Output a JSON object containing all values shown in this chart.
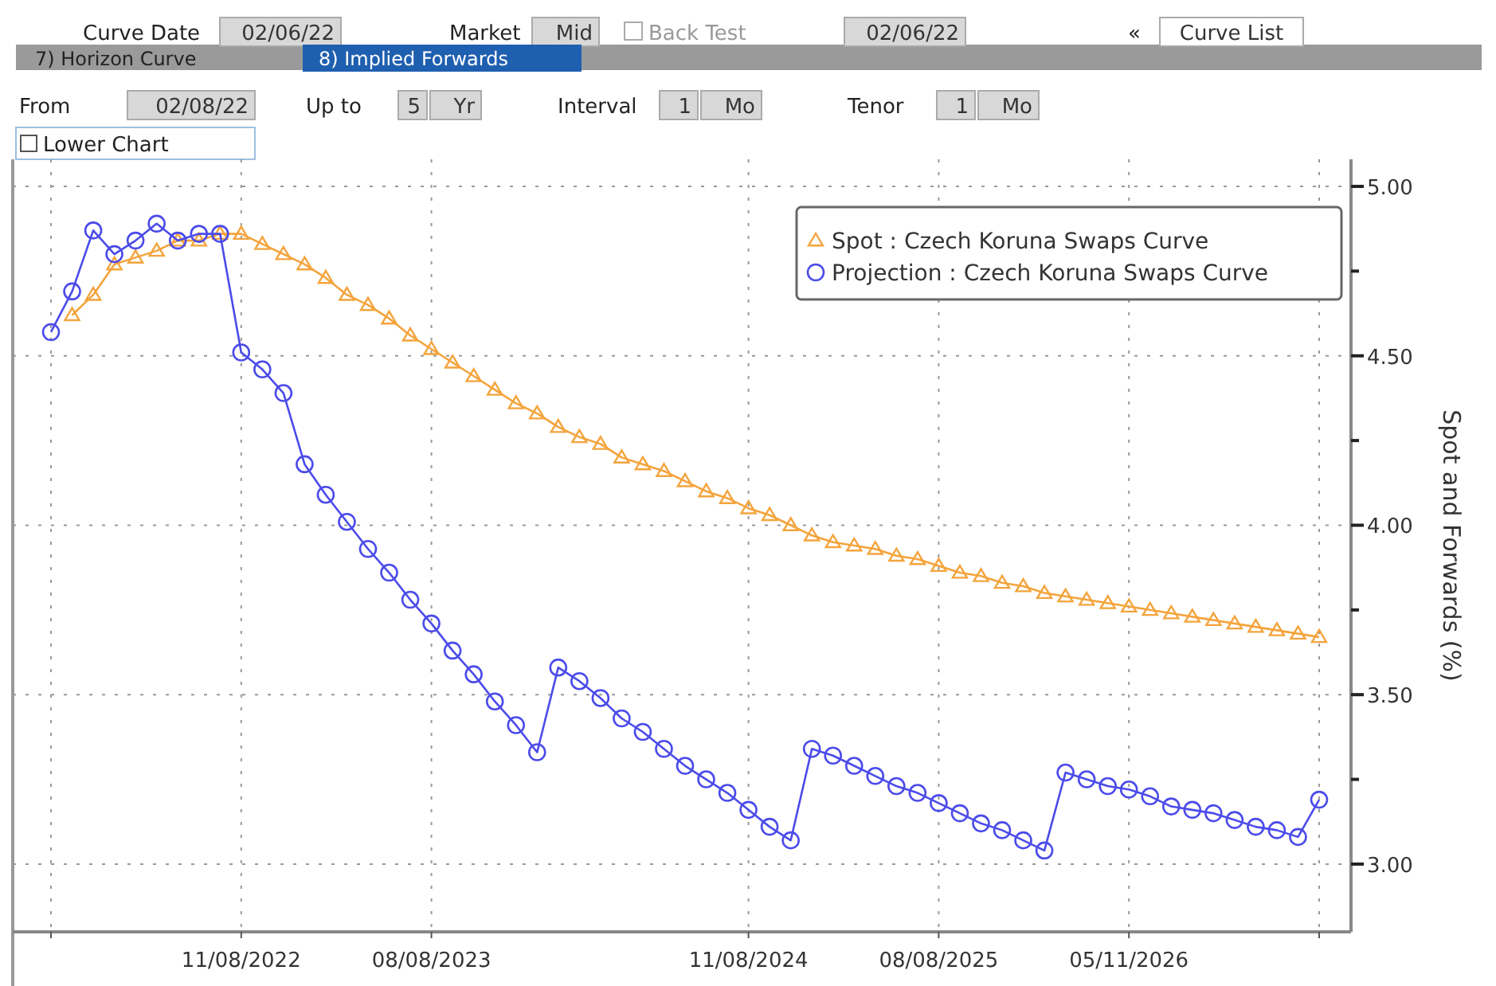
{
  "chart_data": {
    "type": "line",
    "ylabel": "Spot and Forwards (%)",
    "categories": [
      null,
      null,
      null,
      null,
      null,
      null,
      null,
      null,
      null,
      "11/08/2022",
      null,
      null,
      null,
      null,
      null,
      null,
      null,
      null,
      "08/08/2023",
      null,
      null,
      null,
      null,
      null,
      null,
      null,
      null,
      null,
      null,
      null,
      null,
      null,
      null,
      "11/08/2024",
      null,
      null,
      null,
      null,
      null,
      null,
      null,
      null,
      "08/08/2025",
      null,
      null,
      null,
      null,
      null,
      null,
      null,
      null,
      "05/11/2026",
      null,
      null,
      null,
      null,
      null,
      null,
      null,
      null,
      null
    ],
    "series": [
      {
        "name": "Spot : Czech Koruna Swaps Curve",
        "color": "#f4a43c",
        "marker": "triangle",
        "values": [
          null,
          4.62,
          4.68,
          4.77,
          4.79,
          4.81,
          4.84,
          4.84,
          4.86,
          4.86,
          4.83,
          4.8,
          4.77,
          4.73,
          4.68,
          4.65,
          4.61,
          4.56,
          4.52,
          4.48,
          4.44,
          4.4,
          4.36,
          4.33,
          4.29,
          4.26,
          4.24,
          4.2,
          4.18,
          4.16,
          4.13,
          4.1,
          4.08,
          4.05,
          4.03,
          4.0,
          3.97,
          3.95,
          3.94,
          3.93,
          3.91,
          3.9,
          3.88,
          3.86,
          3.85,
          3.83,
          3.82,
          3.8,
          3.79,
          3.78,
          3.77,
          3.76,
          3.75,
          3.74,
          3.73,
          3.72,
          3.71,
          3.7,
          3.69,
          3.68,
          3.67
        ]
      },
      {
        "name": "Projection : Czech Koruna Swaps Curve",
        "color": "#4b4bea",
        "marker": "circle",
        "values": [
          4.57,
          4.69,
          4.87,
          4.8,
          4.84,
          4.89,
          4.84,
          4.86,
          4.86,
          4.51,
          4.46,
          4.39,
          4.18,
          4.09,
          4.01,
          3.93,
          3.86,
          3.78,
          3.71,
          3.63,
          3.56,
          3.48,
          3.41,
          3.33,
          3.58,
          3.54,
          3.49,
          3.43,
          3.39,
          3.34,
          3.29,
          3.25,
          3.21,
          3.16,
          3.11,
          3.07,
          3.34,
          3.32,
          3.29,
          3.26,
          3.23,
          3.21,
          3.18,
          3.15,
          3.12,
          3.1,
          3.07,
          3.04,
          3.27,
          3.25,
          3.23,
          3.22,
          3.2,
          3.17,
          3.16,
          3.15,
          3.13,
          3.11,
          3.1,
          3.08,
          3.19
        ]
      }
    ],
    "ylim": [
      2.8,
      5.08
    ],
    "yticks": [
      {
        "value": 3,
        "label": "3.00"
      },
      {
        "value": 3.25,
        "label": null
      },
      {
        "value": 3.5,
        "label": "3.50"
      },
      {
        "value": 3.75,
        "label": null
      },
      {
        "value": 4,
        "label": "4.00"
      },
      {
        "value": 4.25,
        "label": null
      },
      {
        "value": 4.5,
        "label": "4.50"
      },
      {
        "value": 4.75,
        "label": null
      },
      {
        "value": 5,
        "label": "5.00"
      }
    ],
    "grid": true,
    "legend": "top right",
    "line_style": "solid",
    "annotations": [
      "Curve Date",
      "02/06/22",
      "Market",
      "Mid",
      "Back Test",
      "02/06/22",
      "«",
      "Curve List",
      "7) Horizon Curve",
      "8) Implied Forwards",
      "From",
      "02/08/22",
      "Up to",
      "5",
      "Yr",
      "Interval",
      "1",
      "Mo",
      "Tenor",
      "1",
      "Mo",
      "Lower Chart"
    ]
  }
}
